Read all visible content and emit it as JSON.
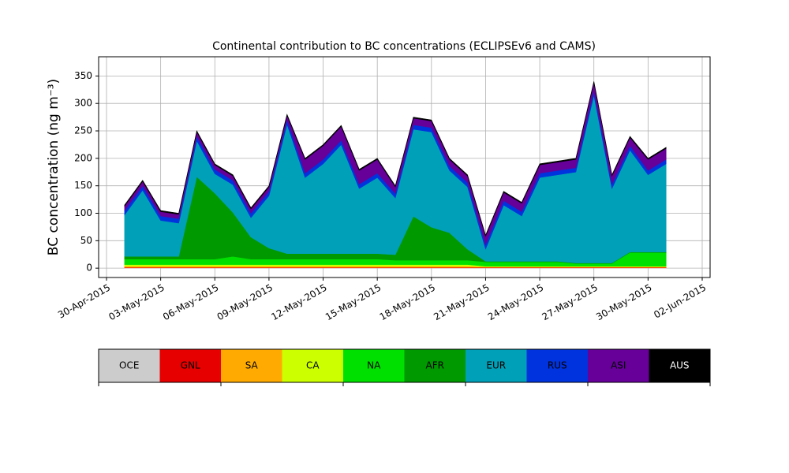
{
  "chart_data": {
    "type": "stacked_area",
    "title": "Continental contribution to BC concentrations (ECLIPSEv6 and CAMS)",
    "y_label": "BC concentration (ng m⁻³)",
    "x": [
      "2015-05-01",
      "2015-05-02",
      "2015-05-03",
      "2015-05-04",
      "2015-05-05",
      "2015-05-06",
      "2015-05-07",
      "2015-05-08",
      "2015-05-09",
      "2015-05-10",
      "2015-05-11",
      "2015-05-12",
      "2015-05-13",
      "2015-05-14",
      "2015-05-15",
      "2015-05-16",
      "2015-05-17",
      "2015-05-18",
      "2015-05-19",
      "2015-05-20",
      "2015-05-21",
      "2015-05-22",
      "2015-05-23",
      "2015-05-24",
      "2015-05-25",
      "2015-05-26",
      "2015-05-27",
      "2015-05-28",
      "2015-05-29",
      "2015-05-30",
      "2015-05-31"
    ],
    "series": [
      {
        "name": "OCE",
        "color": "#cccccc",
        "values": [
          0.5,
          0.5,
          0.5,
          0.5,
          0.5,
          0.5,
          0.5,
          0.5,
          0.5,
          0.5,
          0.5,
          0.5,
          0.5,
          0.5,
          0.5,
          0.5,
          0.5,
          0.5,
          0.5,
          0.5,
          0.5,
          0.5,
          0.5,
          0.5,
          0.5,
          0.5,
          0.5,
          0.5,
          0.5,
          0.5,
          0.5
        ]
      },
      {
        "name": "GNL",
        "color": "#e60000",
        "values": [
          1,
          1,
          1,
          1,
          1,
          1,
          1,
          1,
          1,
          1,
          1,
          1,
          1,
          1,
          1,
          1,
          1,
          1,
          1,
          1,
          1,
          1,
          1,
          1,
          1,
          1,
          1,
          1,
          1,
          1,
          1
        ]
      },
      {
        "name": "SA",
        "color": "#ffaa00",
        "values": [
          2,
          2,
          2,
          2,
          2,
          2,
          2,
          2,
          2,
          2,
          2,
          2,
          2,
          2,
          2,
          2,
          2,
          2,
          2,
          2,
          1,
          1,
          1,
          1,
          1,
          1,
          1,
          1,
          1,
          1,
          1
        ]
      },
      {
        "name": "CA",
        "color": "#ccff00",
        "values": [
          3,
          3,
          3,
          3,
          3,
          3,
          3,
          3,
          3,
          3,
          3,
          3,
          3,
          3,
          3,
          3,
          3,
          3,
          3,
          3,
          1,
          1,
          1,
          1,
          1,
          1,
          1,
          1,
          1,
          1,
          1
        ]
      },
      {
        "name": "NA",
        "color": "#00e000",
        "values": [
          10,
          10,
          10,
          10,
          10,
          10,
          15,
          10,
          10,
          10,
          10,
          10,
          10,
          10,
          10,
          8,
          8,
          8,
          8,
          8,
          8,
          8,
          8,
          8,
          8,
          5,
          5,
          5,
          25,
          25,
          25
        ]
      },
      {
        "name": "AFR",
        "color": "#009900",
        "values": [
          5,
          5,
          5,
          5,
          150,
          120,
          80,
          40,
          20,
          10,
          10,
          10,
          10,
          10,
          10,
          10,
          80,
          60,
          50,
          20,
          1,
          1,
          1,
          1,
          1,
          1,
          1,
          1,
          1,
          1,
          1
        ]
      },
      {
        "name": "EUR",
        "color": "#00a0b8",
        "values": [
          75.5,
          120.5,
          65.5,
          60.5,
          65.5,
          35.5,
          50.5,
          35.5,
          95.5,
          235.5,
          138.5,
          163.5,
          198.5,
          118.5,
          138.5,
          103.5,
          158.5,
          173.5,
          113.5,
          113.5,
          22.5,
          102.5,
          82.5,
          152.5,
          157.5,
          165.5,
          305.5,
          135.5,
          185.5,
          140.5,
          160.5
        ]
      },
      {
        "name": "RUS",
        "color": "#0033dd",
        "values": [
          8,
          8,
          8,
          8,
          8,
          8,
          8,
          8,
          8,
          8,
          8,
          8,
          8,
          8,
          8,
          8,
          8,
          8,
          8,
          8,
          8,
          8,
          8,
          8,
          8,
          8,
          8,
          8,
          8,
          8,
          8
        ]
      },
      {
        "name": "ASI",
        "color": "#660099",
        "values": [
          8,
          8,
          8,
          8,
          8,
          8,
          8,
          8,
          8,
          8,
          25,
          25,
          25,
          25,
          25,
          12,
          12,
          12,
          12,
          12,
          15,
          15,
          15,
          15,
          15,
          15,
          15,
          15,
          15,
          20,
          20
        ]
      },
      {
        "name": "AUS",
        "color": "#000000",
        "values": [
          2,
          2,
          2,
          2,
          2,
          2,
          2,
          2,
          2,
          2,
          2,
          2,
          2,
          2,
          2,
          2,
          2,
          2,
          2,
          2,
          2,
          2,
          2,
          2,
          2,
          2,
          2,
          2,
          2,
          2,
          2
        ]
      }
    ],
    "xlim": [
      "2015-04-29T13:30:00Z",
      "2015-06-02T10:30:00Z"
    ],
    "xticks": [
      {
        "value": "2015-04-30",
        "label": "30-Apr-2015"
      },
      {
        "value": "2015-05-03",
        "label": "03-May-2015"
      },
      {
        "value": "2015-05-06",
        "label": "06-May-2015"
      },
      {
        "value": "2015-05-09",
        "label": "09-May-2015"
      },
      {
        "value": "2015-05-12",
        "label": "12-May-2015"
      },
      {
        "value": "2015-05-15",
        "label": "15-May-2015"
      },
      {
        "value": "2015-05-18",
        "label": "18-May-2015"
      },
      {
        "value": "2015-05-21",
        "label": "21-May-2015"
      },
      {
        "value": "2015-05-24",
        "label": "24-May-2015"
      },
      {
        "value": "2015-05-27",
        "label": "27-May-2015"
      },
      {
        "value": "2015-05-30",
        "label": "30-May-2015"
      },
      {
        "value": "2015-06-02",
        "label": "02-Jun-2015"
      }
    ],
    "ylim": [
      -17,
      385
    ],
    "yticks": [
      0,
      50,
      100,
      150,
      200,
      250,
      300,
      350
    ],
    "grid": true
  }
}
